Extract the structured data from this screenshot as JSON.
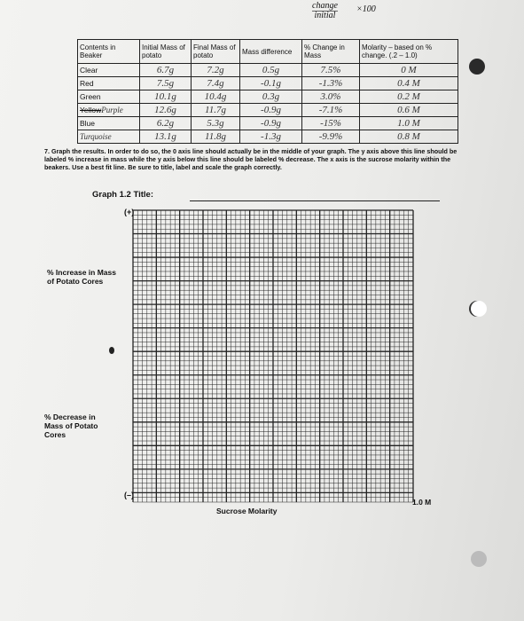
{
  "handwritten_note": {
    "numerator": "change",
    "denominator": "initial",
    "multiplier": "×100"
  },
  "table": {
    "headers": [
      "Contents in Beaker",
      "Initial Mass of potato",
      "Final Mass of potato",
      "Mass difference",
      "% Change in Mass",
      "Molarity – based on % change. (.2 – 1.0)"
    ],
    "rows": [
      {
        "label": "Clear",
        "values": [
          "6.7g",
          "7.2g",
          "0.5g",
          "7.5%",
          "0 M"
        ]
      },
      {
        "label": "Red",
        "values": [
          "7.5g",
          "7.4g",
          "-0.1g",
          "-1.3%",
          "0.4 M"
        ]
      },
      {
        "label": "Green",
        "values": [
          "10.1g",
          "10.4g",
          "0.3g",
          "3.0%",
          "0.2 M"
        ]
      },
      {
        "label": "Yellow",
        "correction": "Purple",
        "values": [
          "12.6g",
          "11.7g",
          "-0.9g",
          "-7.1%",
          "0.6 M"
        ]
      },
      {
        "label": "Blue",
        "values": [
          "6.2g",
          "5.3g",
          "-0.9g",
          "-15%",
          "1.0 M"
        ]
      },
      {
        "correction": "Turquoise",
        "values": [
          "13.1g",
          "11.8g",
          "-1.3g",
          "-9.9%",
          "0.8 M"
        ]
      }
    ]
  },
  "instructions": "7. Graph the results. In order to do so, the 0 axis line should actually be in the middle of your graph. The y axis above this line should be labeled % increase in mass while the y axis below this line should be labeled % decrease. The x axis is the sucrose molarity within the beakers. Use a best fit line. Be sure to title, label and scale the graph correctly.",
  "graph": {
    "title_label": "Graph 1.2  Title:",
    "positive_marker": "(+)",
    "negative_marker": "(–)",
    "y_label_upper": "% Increase in Mass of Potato Cores",
    "y_label_lower": "% Decrease in Mass of Potato Cores",
    "x_label": "Sucrose Molarity",
    "x_end_label": "1.0 M"
  }
}
